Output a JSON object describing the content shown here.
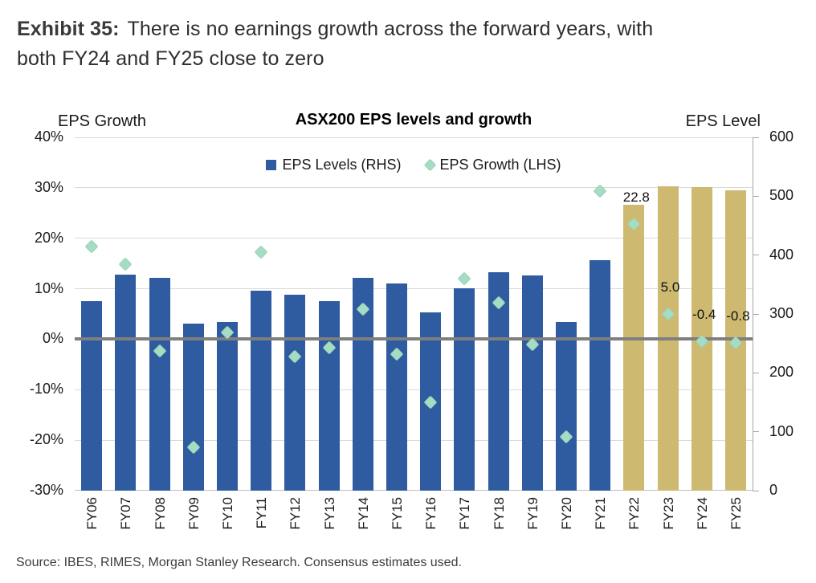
{
  "header": {
    "exhibit_label": "Exhibit 35:",
    "title_line1": "There is no earnings growth across the forward years, with",
    "title_line2": "both FY24 and FY25 close to zero"
  },
  "chart_data": {
    "type": "bar",
    "title": "ASX200 EPS levels and growth",
    "categories": [
      "FY06",
      "FY07",
      "FY08",
      "FY09",
      "FY10",
      "FY11",
      "FY12",
      "FY13",
      "FY14",
      "FY15",
      "FY16",
      "FY17",
      "FY18",
      "FY19",
      "FY20",
      "FY21",
      "FY22",
      "FY23",
      "FY24",
      "FY25"
    ],
    "series": [
      {
        "name": "EPS Levels (RHS)",
        "type": "bar",
        "axis": "right",
        "values": [
          322,
          367,
          361,
          284,
          287,
          339,
          333,
          322,
          361,
          352,
          303,
          343,
          371,
          366,
          286,
          391,
          486,
          517,
          515,
          510
        ]
      },
      {
        "name": "EPS Growth (LHS)",
        "type": "scatter",
        "axis": "left",
        "unit": "%",
        "values": [
          18.3,
          14.9,
          -2.3,
          -21.4,
          1.4,
          17.3,
          -3.4,
          -1.7,
          5.9,
          -2.9,
          -12.5,
          12.0,
          7.3,
          -1.1,
          -19.4,
          29.4,
          22.8,
          5.0,
          -0.4,
          -0.8
        ]
      }
    ],
    "left_axis": {
      "title": "EPS Growth",
      "min": -30,
      "max": 40,
      "tick_step": 10,
      "tick_labels": [
        "40%",
        "30%",
        "20%",
        "10%",
        "0%",
        "-10%",
        "-20%",
        "-30%"
      ]
    },
    "right_axis": {
      "title": "EPS Level",
      "min": 0,
      "max": 600,
      "tick_step": 100,
      "tick_labels": [
        "600",
        "500",
        "400",
        "300",
        "200",
        "100",
        "0"
      ]
    },
    "forecast_from_index": 16,
    "point_labels": [
      {
        "category": "FY22",
        "text": "22.8"
      },
      {
        "category": "FY23",
        "text": "5.0"
      },
      {
        "category": "FY24",
        "text": "-0.4"
      },
      {
        "category": "FY25",
        "text": "-0.8"
      }
    ],
    "grid": "horizontal",
    "legend_position": "top-center",
    "colors": {
      "bar_actual": "#2F5BA0",
      "bar_forecast": "#CDB970",
      "growth_marker": "#A6DCC4",
      "growth_marker_edge": "#99D2B8",
      "zero_line": "#7F7F7F",
      "gridline": "#D9D9D9",
      "baseline": "#BFBFBF",
      "axis_line": "#A6A6A6"
    }
  },
  "source": "Source: IBES, RIMES, Morgan Stanley Research. Consensus estimates used."
}
